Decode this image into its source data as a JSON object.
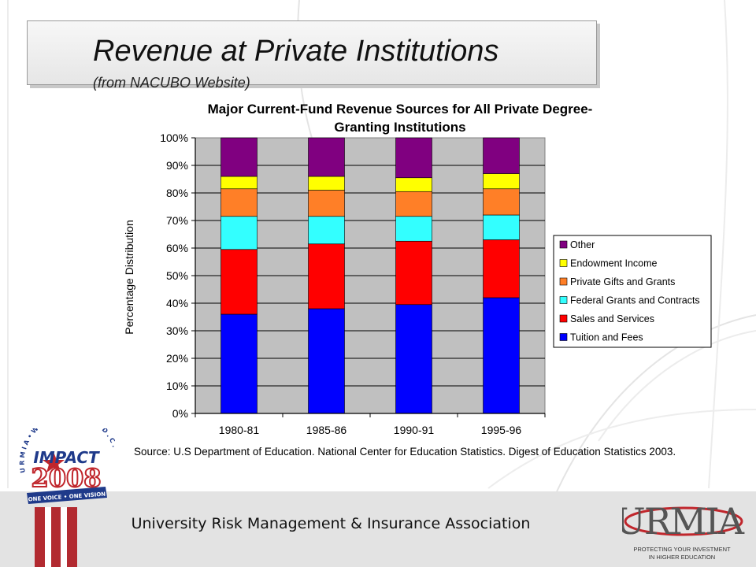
{
  "slide": {
    "title": "Revenue at Private Institutions",
    "subtitle": "(from NACUBO Website)",
    "source": "Source:  U.S Department of Education. National Center for Education Statistics.  Digest of Education Statistics 2003.",
    "footer_text": "University Risk Management & Insurance Association"
  },
  "logos": {
    "impact": {
      "ring_text": "U R M I A • W A S H I N G T O N , D . C .",
      "word": "IMPACT",
      "year": "2008",
      "banner": "ONE VOICE • ONE VISION"
    },
    "urmia": {
      "word": "URMIA",
      "tagline_1": "PROTECTING YOUR INVESTMENT",
      "tagline_2": "IN HIGHER EDUCATION"
    }
  },
  "chart_data": {
    "type": "bar",
    "stacked": true,
    "title_line1": "Major Current-Fund Revenue Sources for All Private Degree-",
    "title_line2": "Granting Institutions",
    "ylabel": "Percentage Distribution",
    "xlabel": "",
    "ylim": [
      0,
      100
    ],
    "yticks": [
      "0%",
      "10%",
      "20%",
      "30%",
      "40%",
      "50%",
      "60%",
      "70%",
      "80%",
      "90%",
      "100%"
    ],
    "categories": [
      "1980-81",
      "1985-86",
      "1990-91",
      "1995-96"
    ],
    "legend_position": "right",
    "series": [
      {
        "name": "Tuition and Fees",
        "color": "#0000ff",
        "values": [
          36,
          38,
          39.5,
          42
        ]
      },
      {
        "name": "Sales and Services",
        "color": "#ff0000",
        "values": [
          23.5,
          23.5,
          23,
          21
        ]
      },
      {
        "name": "Federal Grants and Contracts",
        "color": "#33ffff",
        "values": [
          12,
          10,
          9,
          9
        ]
      },
      {
        "name": "Private Gifts and Grants",
        "color": "#ff7f27",
        "values": [
          10,
          9.5,
          9,
          9.5
        ]
      },
      {
        "name": "Endowment Income",
        "color": "#ffff00",
        "values": [
          4.5,
          5,
          5,
          5.5
        ]
      },
      {
        "name": "Other",
        "color": "#800080",
        "values": [
          14,
          14,
          14.5,
          13
        ]
      }
    ]
  }
}
